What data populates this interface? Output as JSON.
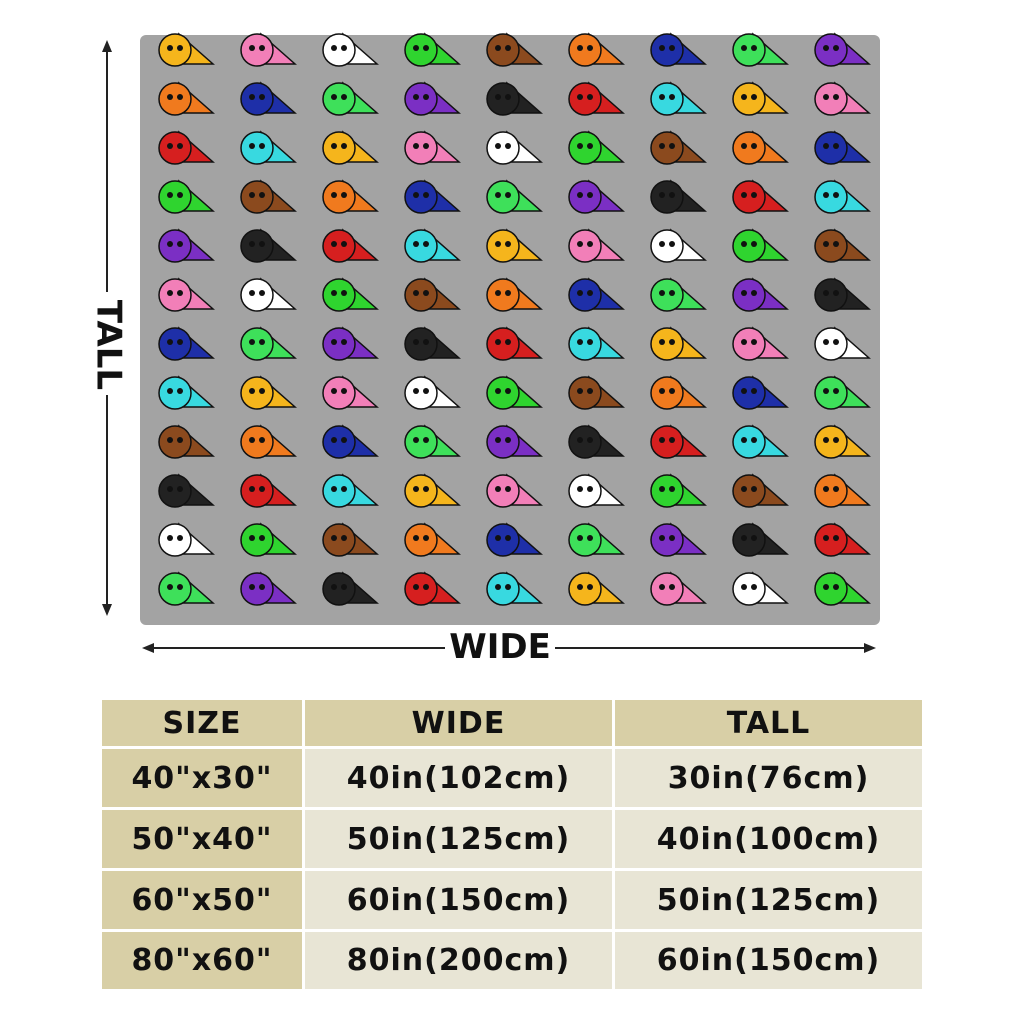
{
  "dimension_labels": {
    "tall": "TALL",
    "wide": "WIDE"
  },
  "table": {
    "header": [
      "SIZE",
      "WIDE",
      "TALL"
    ],
    "rows": [
      [
        "40\"x30\"",
        "40in(102cm)",
        "30in(76cm)"
      ],
      [
        "50\"x40\"",
        "50in(125cm)",
        "40in(100cm)"
      ],
      [
        "60\"x50\"",
        "60in(150cm)",
        "50in(125cm)"
      ],
      [
        "80\"x60\"",
        "80in(200cm)",
        "60in(150cm)"
      ]
    ]
  }
}
